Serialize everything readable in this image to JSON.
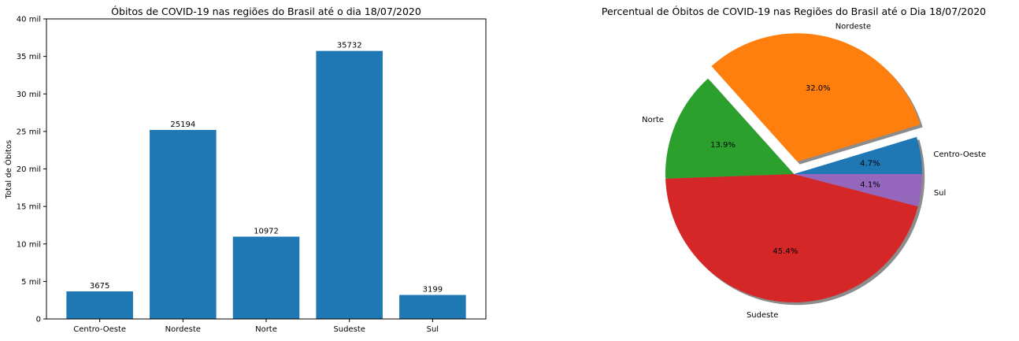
{
  "chart_data": [
    {
      "type": "bar",
      "title": "Óbitos de COVID-19 nas regiões do Brasil até o dia 18/07/2020",
      "xlabel": "",
      "ylabel": "Total de Óbitos",
      "categories": [
        "Centro-Oeste",
        "Nordeste",
        "Norte",
        "Sudeste",
        "Sul"
      ],
      "values": [
        3675,
        25194,
        10972,
        35732,
        3199
      ],
      "data_labels": [
        "3675",
        "25194",
        "10972",
        "35732",
        "3199"
      ],
      "ylim": [
        0,
        40000
      ],
      "yticks": [
        0,
        5000,
        10000,
        15000,
        20000,
        25000,
        30000,
        35000,
        40000
      ],
      "ytick_labels": [
        "0",
        "5 mil",
        "10 mil",
        "15 mil",
        "20 mil",
        "25 mil",
        "30 mil",
        "35 mil",
        "40 mil"
      ],
      "bar_color": "#1f77b4",
      "grid": false
    },
    {
      "type": "pie",
      "title": "Percentual de Óbitos de COVID-19 nas Regiões do Brasil até o Dia 18/07/2020",
      "labels": [
        "Centro-Oeste",
        "Nordeste",
        "Norte",
        "Sudeste",
        "Sul"
      ],
      "values": [
        3675,
        25194,
        10972,
        35732,
        3199
      ],
      "percent_labels": [
        "4.7%",
        "32.0%",
        "13.9%",
        "45.4%",
        "4.1%"
      ],
      "colors": [
        "#1f77b4",
        "#ff7f0e",
        "#2ca02c",
        "#d62728",
        "#9467bd"
      ],
      "exploded": [
        "Nordeste"
      ],
      "shadow": true,
      "start_angle": 0
    }
  ]
}
